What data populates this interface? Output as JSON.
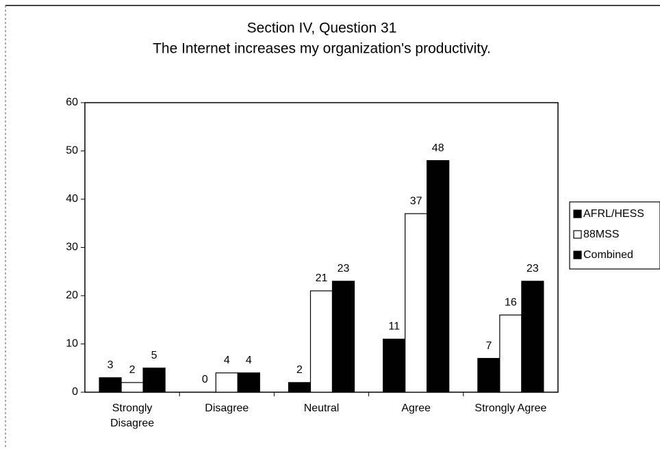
{
  "chart_data": {
    "type": "bar",
    "title": "Section IV, Question 31",
    "subtitle": "The Internet increases my organization's productivity.",
    "categories": [
      "Strongly Disagree",
      "Disagree",
      "Neutral",
      "Agree",
      "Strongly Agree"
    ],
    "series": [
      {
        "name": "AFRL/HESS",
        "color": "#000000",
        "values": [
          3,
          0,
          2,
          11,
          7
        ]
      },
      {
        "name": "88MSS",
        "color": "#ffffff",
        "values": [
          2,
          4,
          21,
          37,
          16
        ]
      },
      {
        "name": "Combined",
        "color": "#000000",
        "values": [
          5,
          4,
          23,
          48,
          23
        ]
      }
    ],
    "ylim": [
      0,
      60
    ],
    "yticks": [
      0,
      10,
      20,
      30,
      40,
      50,
      60
    ],
    "grid": false,
    "legend": "right"
  }
}
